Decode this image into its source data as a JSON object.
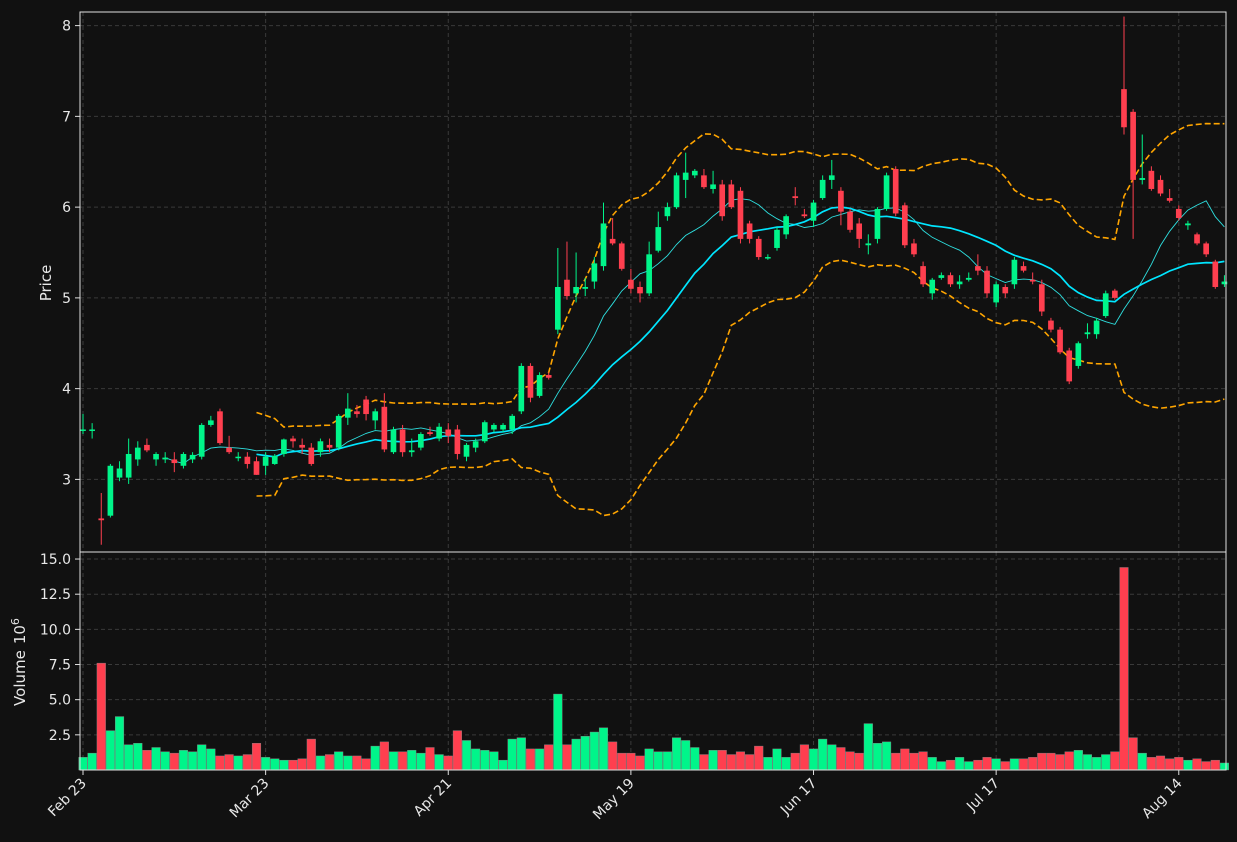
{
  "chart_data": {
    "type": "candlestick",
    "colors": {
      "background": "#111111",
      "up": "#00f58a",
      "down": "#ff3f4f",
      "sma_fast": "#2ee0e0",
      "sma_slow": "#00e6ff",
      "bollinger": "#ffa500",
      "grid": "#3a3a3a",
      "text": "#e8e8e8"
    },
    "x_ticks": [
      "Feb 23",
      "Mar 23",
      "Apr 21",
      "May 19",
      "Jun 17",
      "Jul 17",
      "Aug 14"
    ],
    "price_axis": {
      "label": "Price",
      "ylim": [
        2.2,
        8.15
      ],
      "ticks": [
        3,
        4,
        5,
        6,
        7,
        8
      ]
    },
    "volume_axis": {
      "label": "Volume",
      "exponent_label": "10",
      "exponent": "6",
      "ylim": [
        0,
        15.5
      ],
      "ticks": [
        2.5,
        5.0,
        7.5,
        10.0,
        12.5,
        15.0
      ],
      "tick_labels": [
        "2.5",
        "5.0",
        "7.5",
        "10.0",
        "12.5",
        "15.0"
      ]
    },
    "candles": [
      [
        3.55,
        3.72,
        3.5,
        3.55,
        0.9
      ],
      [
        3.55,
        3.62,
        3.45,
        3.55,
        1.2
      ],
      [
        2.57,
        2.85,
        2.28,
        2.55,
        7.6
      ],
      [
        2.6,
        3.17,
        2.58,
        3.15,
        2.8
      ],
      [
        3.02,
        3.2,
        2.98,
        3.12,
        3.8
      ],
      [
        3.02,
        3.45,
        2.95,
        3.28,
        1.8
      ],
      [
        3.22,
        3.42,
        3.15,
        3.35,
        1.9
      ],
      [
        3.38,
        3.45,
        3.3,
        3.32,
        1.4
      ],
      [
        3.22,
        3.3,
        3.15,
        3.28,
        1.6
      ],
      [
        3.22,
        3.3,
        3.18,
        3.24,
        1.3
      ],
      [
        3.22,
        3.3,
        3.08,
        3.18,
        1.2
      ],
      [
        3.15,
        3.3,
        3.12,
        3.28,
        1.4
      ],
      [
        3.22,
        3.3,
        3.18,
        3.27,
        1.3
      ],
      [
        3.25,
        3.62,
        3.22,
        3.6,
        1.8
      ],
      [
        3.6,
        3.7,
        3.58,
        3.65,
        1.5
      ],
      [
        3.75,
        3.78,
        3.38,
        3.4,
        1.0
      ],
      [
        3.35,
        3.48,
        3.28,
        3.3,
        1.1
      ],
      [
        3.25,
        3.3,
        3.2,
        3.25,
        1.0
      ],
      [
        3.25,
        3.3,
        3.12,
        3.17,
        1.1
      ],
      [
        3.2,
        3.25,
        3.05,
        3.05,
        1.9
      ],
      [
        3.15,
        3.3,
        3.05,
        3.25,
        0.9
      ],
      [
        3.17,
        3.28,
        3.16,
        3.26,
        0.8
      ],
      [
        3.28,
        3.45,
        3.25,
        3.44,
        0.7
      ],
      [
        3.45,
        3.48,
        3.35,
        3.42,
        0.7
      ],
      [
        3.38,
        3.45,
        3.28,
        3.35,
        0.8
      ],
      [
        3.35,
        3.4,
        3.15,
        3.17,
        2.2
      ],
      [
        3.3,
        3.45,
        3.25,
        3.42,
        1.0
      ],
      [
        3.38,
        3.45,
        3.3,
        3.35,
        1.1
      ],
      [
        3.35,
        3.72,
        3.32,
        3.7,
        1.3
      ],
      [
        3.68,
        3.95,
        3.6,
        3.78,
        1.0
      ],
      [
        3.75,
        3.82,
        3.68,
        3.72,
        1.0
      ],
      [
        3.88,
        3.92,
        3.65,
        3.72,
        0.8
      ],
      [
        3.65,
        3.78,
        3.55,
        3.75,
        1.7
      ],
      [
        3.8,
        3.95,
        3.3,
        3.33,
        2.0
      ],
      [
        3.3,
        3.58,
        3.28,
        3.55,
        1.3
      ],
      [
        3.55,
        3.6,
        3.25,
        3.3,
        1.3
      ],
      [
        3.3,
        3.45,
        3.25,
        3.32,
        1.4
      ],
      [
        3.35,
        3.52,
        3.32,
        3.5,
        1.2
      ],
      [
        3.52,
        3.58,
        3.48,
        3.5,
        1.6
      ],
      [
        3.45,
        3.62,
        3.42,
        3.58,
        1.1
      ],
      [
        3.55,
        3.62,
        3.4,
        3.48,
        1.0
      ],
      [
        3.55,
        3.6,
        3.22,
        3.28,
        2.8
      ],
      [
        3.25,
        3.4,
        3.2,
        3.38,
        2.1
      ],
      [
        3.35,
        3.45,
        3.3,
        3.42,
        1.5
      ],
      [
        3.42,
        3.65,
        3.4,
        3.63,
        1.4
      ],
      [
        3.55,
        3.62,
        3.52,
        3.6,
        1.3
      ],
      [
        3.55,
        3.62,
        3.52,
        3.6,
        0.7
      ],
      [
        3.55,
        3.72,
        3.5,
        3.7,
        2.2
      ],
      [
        3.75,
        4.28,
        3.72,
        4.25,
        2.3
      ],
      [
        4.25,
        4.28,
        3.85,
        3.9,
        1.5
      ],
      [
        3.92,
        4.18,
        3.9,
        4.15,
        1.5
      ],
      [
        4.15,
        4.18,
        4.1,
        4.12,
        1.8
      ],
      [
        4.65,
        5.55,
        4.6,
        5.12,
        5.4
      ],
      [
        5.2,
        5.62,
        4.98,
        5.02,
        1.8
      ],
      [
        5.05,
        5.5,
        4.95,
        5.12,
        2.2
      ],
      [
        5.1,
        5.22,
        5.02,
        5.12,
        2.4
      ],
      [
        5.18,
        5.45,
        5.1,
        5.38,
        2.7
      ],
      [
        5.35,
        6.05,
        5.3,
        5.82,
        3.0
      ],
      [
        5.65,
        5.88,
        5.58,
        5.6,
        2.0
      ],
      [
        5.6,
        5.62,
        5.3,
        5.32,
        1.2
      ],
      [
        5.2,
        5.32,
        5.05,
        5.1,
        1.2
      ],
      [
        5.12,
        5.18,
        4.95,
        5.05,
        1.0
      ],
      [
        5.05,
        5.62,
        5.02,
        5.48,
        1.5
      ],
      [
        5.52,
        5.95,
        5.5,
        5.78,
        1.3
      ],
      [
        5.9,
        6.05,
        5.85,
        6.0,
        1.3
      ],
      [
        6.0,
        6.38,
        5.98,
        6.35,
        2.3
      ],
      [
        6.3,
        6.6,
        6.1,
        6.38,
        2.1
      ],
      [
        6.35,
        6.42,
        6.32,
        6.4,
        1.6
      ],
      [
        6.35,
        6.42,
        6.2,
        6.22,
        1.1
      ],
      [
        6.2,
        6.4,
        6.15,
        6.25,
        1.4
      ],
      [
        6.25,
        6.3,
        5.85,
        5.9,
        1.4
      ],
      [
        6.25,
        6.3,
        5.98,
        6.0,
        1.1
      ],
      [
        6.18,
        6.22,
        5.6,
        5.65,
        1.3
      ],
      [
        5.82,
        5.85,
        5.6,
        5.65,
        1.1
      ],
      [
        5.65,
        5.68,
        5.42,
        5.45,
        1.7
      ],
      [
        5.45,
        5.48,
        5.42,
        5.45,
        0.9
      ],
      [
        5.55,
        5.78,
        5.52,
        5.75,
        1.5
      ],
      [
        5.7,
        5.92,
        5.65,
        5.9,
        0.9
      ],
      [
        6.12,
        6.22,
        6.02,
        6.1,
        1.2
      ],
      [
        5.92,
        5.98,
        5.88,
        5.9,
        1.8
      ],
      [
        5.85,
        6.08,
        5.78,
        6.05,
        1.5
      ],
      [
        6.1,
        6.35,
        6.08,
        6.3,
        2.2
      ],
      [
        6.3,
        6.52,
        6.2,
        6.35,
        1.8
      ],
      [
        6.18,
        6.22,
        5.8,
        5.95,
        1.6
      ],
      [
        5.95,
        5.98,
        5.72,
        5.75,
        1.3
      ],
      [
        5.82,
        5.88,
        5.55,
        5.65,
        1.2
      ],
      [
        5.58,
        5.7,
        5.48,
        5.6,
        3.3
      ],
      [
        5.65,
        6.0,
        5.6,
        5.98,
        1.9
      ],
      [
        5.98,
        6.38,
        5.96,
        6.35,
        2.0
      ],
      [
        6.42,
        6.45,
        5.9,
        5.93,
        1.2
      ],
      [
        6.02,
        6.05,
        5.55,
        5.58,
        1.5
      ],
      [
        5.6,
        5.65,
        5.45,
        5.48,
        1.2
      ],
      [
        5.35,
        5.4,
        5.12,
        5.15,
        1.3
      ],
      [
        5.05,
        5.22,
        4.98,
        5.2,
        0.9
      ],
      [
        5.22,
        5.28,
        5.2,
        5.25,
        0.6
      ],
      [
        5.25,
        5.28,
        5.12,
        5.15,
        0.7
      ],
      [
        5.15,
        5.25,
        5.1,
        5.18,
        0.9
      ],
      [
        5.2,
        5.28,
        5.18,
        5.22,
        0.6
      ],
      [
        5.35,
        5.48,
        5.25,
        5.3,
        0.7
      ],
      [
        5.3,
        5.35,
        5.0,
        5.05,
        0.9
      ],
      [
        4.95,
        5.18,
        4.9,
        5.15,
        0.8
      ],
      [
        5.12,
        5.15,
        5.0,
        5.05,
        0.6
      ],
      [
        5.15,
        5.45,
        5.1,
        5.42,
        0.8
      ],
      [
        5.35,
        5.4,
        5.28,
        5.3,
        0.8
      ],
      [
        5.2,
        5.28,
        5.15,
        5.18,
        0.9
      ],
      [
        5.15,
        5.2,
        4.8,
        4.85,
        1.2
      ],
      [
        4.75,
        4.78,
        4.62,
        4.65,
        1.2
      ],
      [
        4.65,
        4.68,
        4.38,
        4.4,
        1.1
      ],
      [
        4.42,
        4.45,
        4.05,
        4.08,
        1.3
      ],
      [
        4.25,
        4.52,
        4.22,
        4.5,
        1.4
      ],
      [
        4.6,
        4.72,
        4.55,
        4.62,
        1.1
      ],
      [
        4.6,
        4.78,
        4.55,
        4.75,
        0.9
      ],
      [
        4.8,
        5.08,
        4.78,
        5.05,
        1.1
      ],
      [
        5.08,
        5.1,
        4.98,
        5.0,
        1.3
      ],
      [
        7.3,
        8.1,
        6.8,
        6.88,
        14.4
      ],
      [
        7.05,
        7.08,
        5.65,
        6.3,
        2.3
      ],
      [
        6.3,
        6.8,
        6.25,
        6.32,
        1.2
      ],
      [
        6.4,
        6.45,
        6.18,
        6.2,
        0.9
      ],
      [
        6.3,
        6.35,
        6.12,
        6.15,
        1.0
      ],
      [
        6.1,
        6.2,
        6.05,
        6.07,
        0.8
      ],
      [
        5.98,
        6.02,
        5.85,
        5.88,
        0.9
      ],
      [
        5.8,
        5.85,
        5.75,
        5.82,
        0.7
      ],
      [
        5.7,
        5.72,
        5.58,
        5.6,
        0.8
      ],
      [
        5.6,
        5.62,
        5.45,
        5.48,
        0.6
      ],
      [
        5.4,
        5.42,
        5.1,
        5.12,
        0.7
      ],
      [
        5.15,
        5.25,
        5.12,
        5.18,
        0.5
      ]
    ]
  }
}
